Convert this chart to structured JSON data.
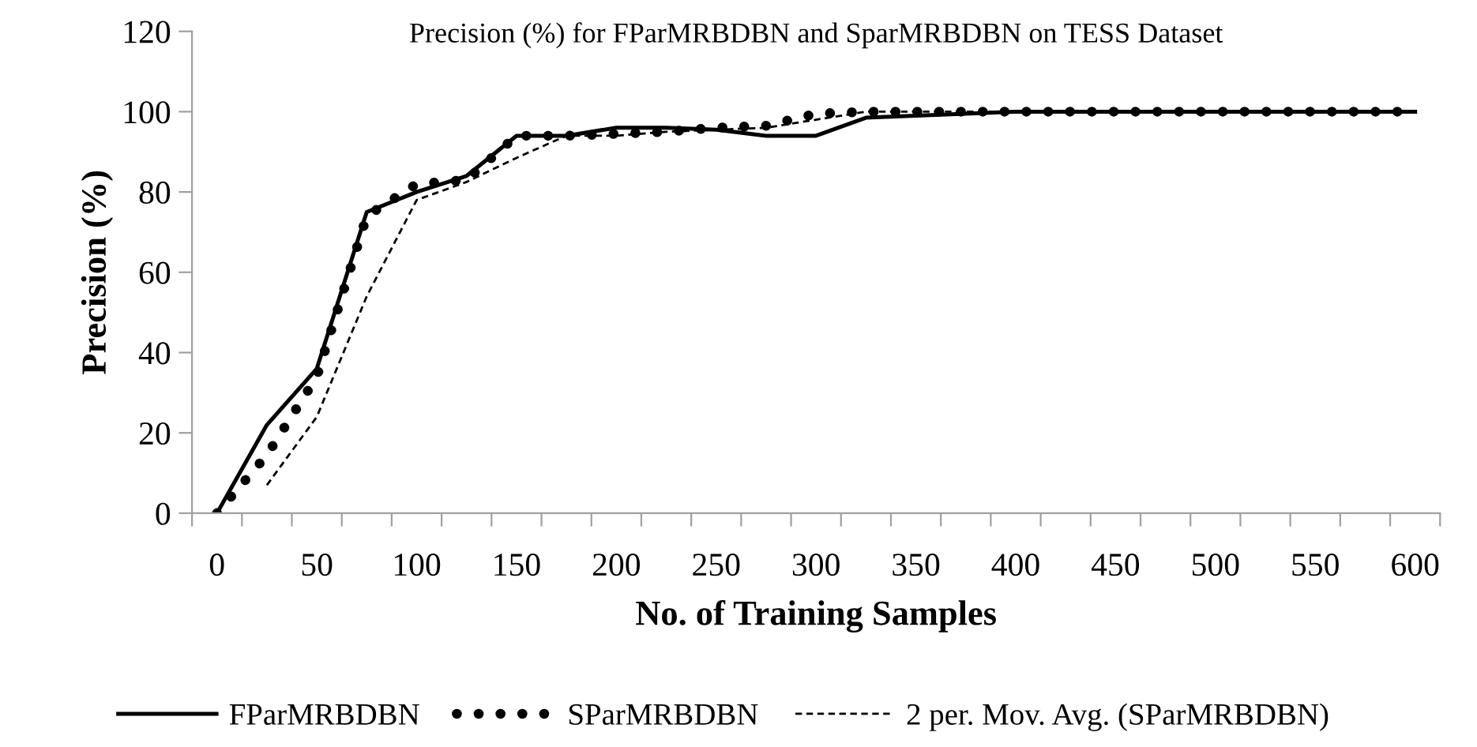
{
  "chart_data": {
    "type": "line",
    "title": "Precision (%) for FParMRBDBN and SparMRBDBN on TESS Dataset",
    "xlabel": "No. of Training Samples",
    "ylabel": "Precision (%)",
    "x": [
      0,
      25,
      50,
      75,
      100,
      125,
      150,
      175,
      200,
      225,
      250,
      275,
      300,
      325,
      350,
      375,
      400,
      425,
      450,
      475,
      500,
      525,
      550,
      575,
      600
    ],
    "series": [
      {
        "name": "FParMRBDBN",
        "color": "#000000",
        "line_style": "solid",
        "values": [
          0,
          22,
          36,
          75,
          80,
          84,
          94,
          94,
          96,
          96,
          95.5,
          94,
          94,
          98.5,
          99,
          99.5,
          100,
          100,
          100,
          100,
          100,
          100,
          100,
          100,
          100
        ]
      },
      {
        "name": "SParMRBDBN",
        "color": "#000000",
        "line_style": "dotted",
        "values": [
          0,
          14.5,
          34,
          74,
          82,
          83,
          94,
          94,
          94.5,
          95,
          96,
          96.5,
          99.5,
          100,
          100,
          100,
          100,
          100,
          100,
          100,
          100,
          100,
          100,
          100,
          100
        ]
      },
      {
        "name": "2 per. Mov. Avg. (SParMRBDBN)",
        "color": "#000000",
        "line_style": "dashed",
        "x": [
          25,
          50,
          75,
          100,
          125,
          150,
          175,
          200,
          225,
          250,
          275,
          300,
          325,
          350,
          375,
          400,
          425,
          450,
          475,
          500,
          525,
          550,
          575,
          600
        ],
        "values": [
          7,
          24,
          54,
          78,
          82.5,
          88.5,
          94,
          94,
          95,
          95.5,
          96,
          98,
          100,
          100,
          100,
          100,
          100,
          100,
          100,
          100,
          100,
          100,
          100,
          100
        ]
      }
    ],
    "xlim": [
      -12.5,
      612.5
    ],
    "ylim": [
      0,
      120
    ],
    "xticks": [
      {
        "value": -12.5,
        "label": null
      },
      0,
      {
        "value": 12.5,
        "label": null
      },
      {
        "value": 37.5,
        "label": null
      },
      50,
      {
        "value": 62.5,
        "label": null
      },
      {
        "value": 87.5,
        "label": null
      },
      100,
      {
        "value": 112.5,
        "label": null
      },
      {
        "value": 137.5,
        "label": null
      },
      150,
      {
        "value": 162.5,
        "label": null
      },
      {
        "value": 187.5,
        "label": null
      },
      200,
      {
        "value": 212.5,
        "label": null
      },
      {
        "value": 237.5,
        "label": null
      },
      250,
      {
        "value": 262.5,
        "label": null
      },
      {
        "value": 287.5,
        "label": null
      },
      300,
      {
        "value": 312.5,
        "label": null
      },
      {
        "value": 337.5,
        "label": null
      },
      350,
      {
        "value": 362.5,
        "label": null
      },
      {
        "value": 387.5,
        "label": null
      },
      400,
      {
        "value": 412.5,
        "label": null
      },
      {
        "value": 437.5,
        "label": null
      },
      450,
      {
        "value": 462.5,
        "label": null
      },
      {
        "value": 487.5,
        "label": null
      },
      500,
      {
        "value": 512.5,
        "label": null
      },
      {
        "value": 537.5,
        "label": null
      },
      550,
      {
        "value": 562.5,
        "label": null
      },
      {
        "value": 587.5,
        "label": null
      },
      600,
      {
        "value": 612.5,
        "label": null
      }
    ],
    "yticks": [
      0,
      20,
      40,
      60,
      80,
      100,
      120
    ],
    "grid": false,
    "legend": "bottom",
    "marker": "none"
  }
}
